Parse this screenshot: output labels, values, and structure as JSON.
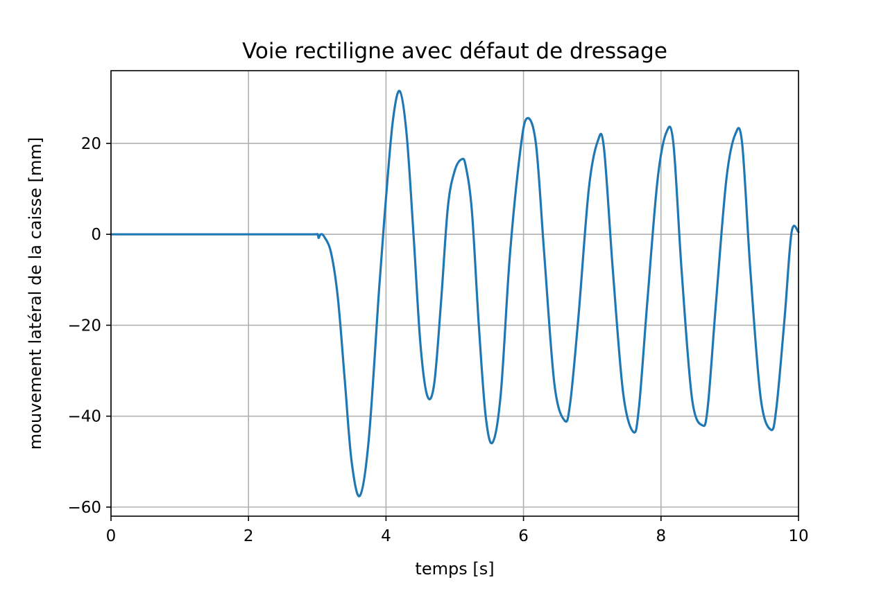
{
  "chart_data": {
    "type": "line",
    "title": "Voie rectiligne avec défaut de dressage",
    "xlabel": "temps [s]",
    "ylabel": "mouvement latéral de la caisse [mm]",
    "xlim": [
      0,
      10
    ],
    "ylim": [
      -62,
      36
    ],
    "x_ticks": [
      0,
      2,
      4,
      6,
      8,
      10
    ],
    "x_tick_labels": [
      "0",
      "2",
      "4",
      "6",
      "8",
      "10"
    ],
    "y_ticks": [
      -60,
      -40,
      -20,
      0,
      20
    ],
    "y_tick_labels": [
      "−60",
      "−40",
      "−20",
      "0",
      "20"
    ],
    "grid": true,
    "series": [
      {
        "color": "#1f77b4",
        "x": [
          0,
          1,
          2,
          2.9,
          3.0,
          3.02,
          3.05,
          3.1,
          3.2,
          3.3,
          3.4,
          3.5,
          3.62,
          3.75,
          3.9,
          4.0,
          4.1,
          4.2,
          4.3,
          4.4,
          4.5,
          4.6,
          4.7,
          4.8,
          4.9,
          5.0,
          5.1,
          5.16,
          5.25,
          5.35,
          5.45,
          5.55,
          5.67,
          5.8,
          5.95,
          6.05,
          6.18,
          6.3,
          6.45,
          6.6,
          6.68,
          6.8,
          6.95,
          7.08,
          7.17,
          7.3,
          7.45,
          7.6,
          7.68,
          7.8,
          7.95,
          8.08,
          8.18,
          8.3,
          8.45,
          8.6,
          8.68,
          8.8,
          8.95,
          9.08,
          9.18,
          9.3,
          9.45,
          9.6,
          9.68,
          9.8,
          9.9,
          10.0
        ],
        "y": [
          0,
          0,
          0,
          0,
          0,
          -0.8,
          0,
          -0.5,
          -4,
          -14,
          -32,
          -50,
          -57.5,
          -45,
          -12,
          8,
          25,
          31.5,
          22,
          0,
          -24,
          -35.5,
          -33,
          -15,
          6,
          14,
          16.5,
          15,
          5,
          -20,
          -40,
          -45.8,
          -35,
          -5,
          18,
          25.5,
          20,
          -4,
          -33,
          -41,
          -37,
          -18,
          10,
          20.5,
          19,
          -8,
          -35,
          -43.5,
          -38,
          -15,
          12,
          22.5,
          20,
          -8,
          -36,
          -42,
          -38,
          -15,
          12,
          22,
          20,
          -8,
          -36,
          -43,
          -38,
          -18,
          0.5,
          0.5
        ]
      }
    ]
  }
}
